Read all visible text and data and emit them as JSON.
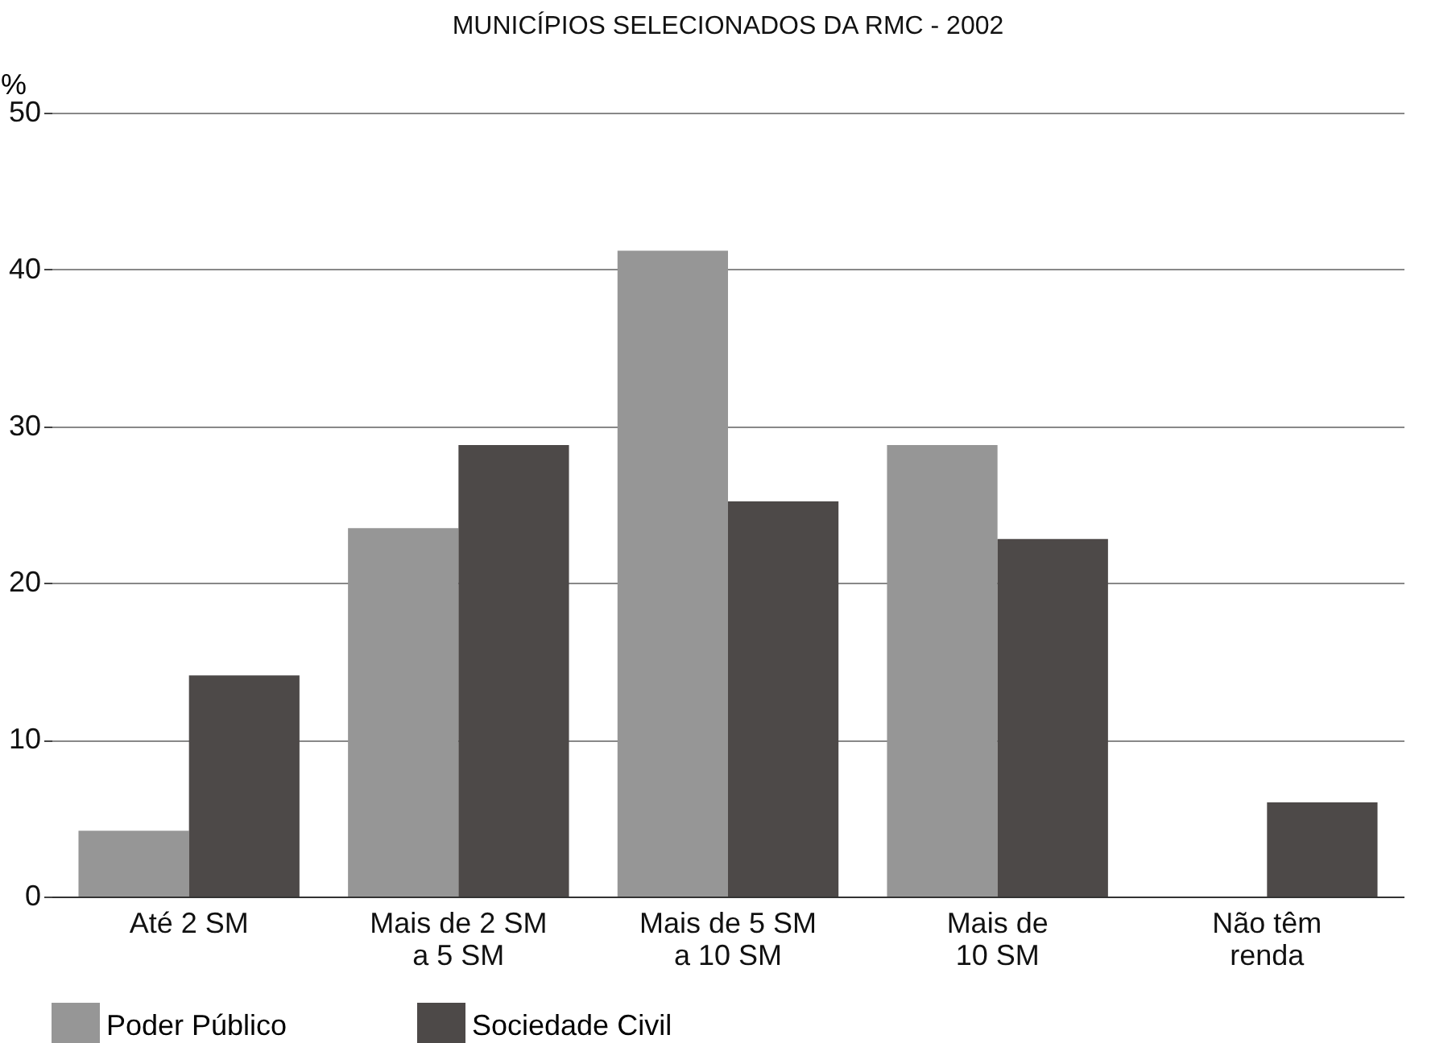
{
  "chart_data": {
    "type": "bar",
    "title": "MUNICÍPIOS SELECIONADOS DA RMC - 2002",
    "ylabel": "%",
    "categories": [
      "Até 2 SM",
      "Mais de 2 SM\na 5 SM",
      "Mais de 5 SM\na 10 SM",
      "Mais de\n10 SM",
      "Não têm\nrenda"
    ],
    "series": [
      {
        "name": "Poder Público",
        "color": "#969696",
        "values": [
          4.2,
          23.5,
          41.2,
          28.8,
          0
        ]
      },
      {
        "name": "Sociedade Civil",
        "color": "#4d4948",
        "values": [
          14.1,
          28.8,
          25.2,
          22.8,
          6
        ]
      }
    ],
    "ylim": [
      0,
      50
    ],
    "yticks": [
      0,
      10,
      20,
      30,
      40,
      50
    ],
    "grid": "y",
    "legend": "bottom left"
  }
}
